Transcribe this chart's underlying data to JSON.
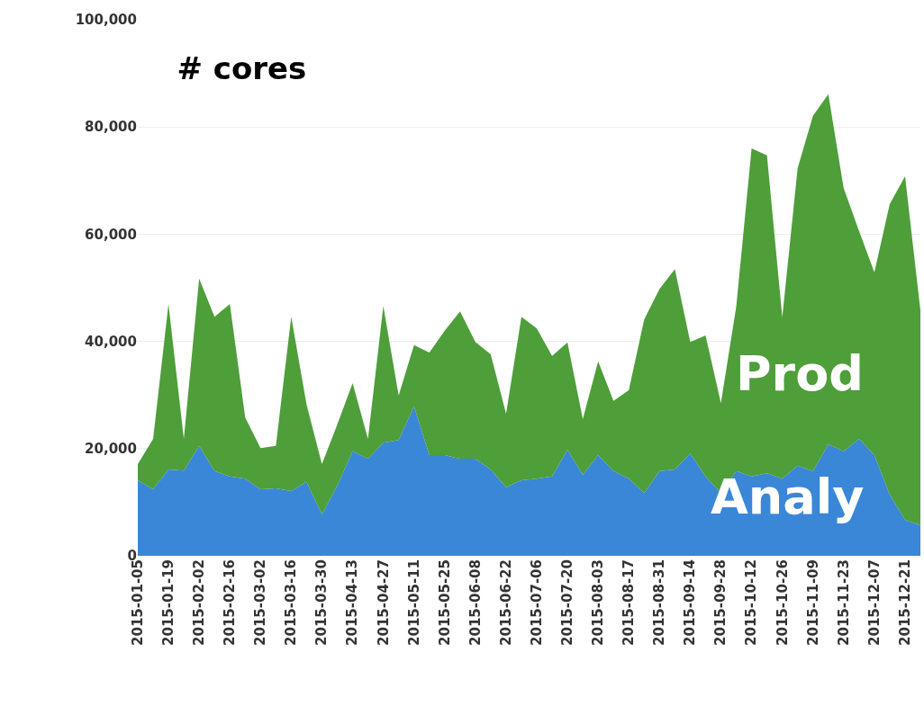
{
  "chart_data": {
    "type": "area",
    "title": "# cores",
    "stacked": true,
    "legend": false,
    "grid": "y",
    "x": [
      "2015-01-05",
      "2015-01-12",
      "2015-01-19",
      "2015-01-26",
      "2015-02-02",
      "2015-02-09",
      "2015-02-16",
      "2015-02-23",
      "2015-03-02",
      "2015-03-09",
      "2015-03-16",
      "2015-03-23",
      "2015-03-30",
      "2015-04-06",
      "2015-04-13",
      "2015-04-20",
      "2015-04-27",
      "2015-05-04",
      "2015-05-11",
      "2015-05-18",
      "2015-05-25",
      "2015-06-01",
      "2015-06-08",
      "2015-06-15",
      "2015-06-22",
      "2015-06-29",
      "2015-07-06",
      "2015-07-13",
      "2015-07-20",
      "2015-07-27",
      "2015-08-03",
      "2015-08-10",
      "2015-08-17",
      "2015-08-24",
      "2015-08-31",
      "2015-09-07",
      "2015-09-14",
      "2015-09-21",
      "2015-09-28",
      "2015-10-05",
      "2015-10-12",
      "2015-10-19",
      "2015-10-26",
      "2015-11-02",
      "2015-11-09",
      "2015-11-16",
      "2015-11-23",
      "2015-11-30",
      "2015-12-07",
      "2015-12-14",
      "2015-12-21",
      "2015-12-28"
    ],
    "series": [
      {
        "name": "Analy",
        "color": "#3a87d8",
        "values": [
          14100,
          12400,
          16100,
          15900,
          20500,
          15800,
          14800,
          14400,
          12400,
          12600,
          12100,
          13800,
          7700,
          13100,
          19500,
          18100,
          21100,
          21600,
          27900,
          18800,
          18800,
          18100,
          18100,
          16100,
          12800,
          14100,
          14400,
          14800,
          19800,
          15100,
          18800,
          15800,
          14400,
          11700,
          15800,
          16100,
          19100,
          14800,
          11700,
          15800,
          14800,
          15400,
          14400,
          16800,
          15800,
          20800,
          19500,
          21800,
          18800,
          11400,
          6700,
          5700
        ]
      },
      {
        "name": "Prod",
        "color": "#4e9e3a",
        "values": [
          3000,
          9400,
          30900,
          5900,
          31200,
          28800,
          32200,
          11400,
          7700,
          7900,
          32500,
          14400,
          9400,
          11400,
          12700,
          3700,
          25500,
          8300,
          11400,
          19100,
          23200,
          27500,
          21800,
          21500,
          13700,
          30500,
          28000,
          22500,
          20000,
          10400,
          17500,
          13100,
          16500,
          32400,
          34000,
          37400,
          20800,
          26300,
          16800,
          30700,
          61200,
          59300,
          30100,
          55500,
          66300,
          65300,
          49100,
          38800,
          34100,
          54200,
          64100,
          40100
        ]
      }
    ],
    "xlim": [
      "2015-01-05",
      "2015-12-28"
    ],
    "xticks": [
      "2015-01-05",
      "2015-01-19",
      "2015-02-02",
      "2015-02-16",
      "2015-03-02",
      "2015-03-16",
      "2015-03-30",
      "2015-04-13",
      "2015-04-27",
      "2015-05-11",
      "2015-05-25",
      "2015-06-08",
      "2015-06-22",
      "2015-07-06",
      "2015-07-20",
      "2015-08-03",
      "2015-08-17",
      "2015-08-31",
      "2015-09-14",
      "2015-09-28",
      "2015-10-12",
      "2015-10-26",
      "2015-11-09",
      "2015-11-23",
      "2015-12-07",
      "2015-12-21"
    ],
    "ylim": [
      0,
      100000
    ],
    "yticks": [
      {
        "value": 0,
        "label": "0"
      },
      {
        "value": 20000,
        "label": "20,000"
      },
      {
        "value": 40000,
        "label": "40,000"
      },
      {
        "value": 60000,
        "label": "60,000"
      },
      {
        "value": 80000,
        "label": "80,000"
      },
      {
        "value": 100000,
        "label": "100,000"
      }
    ]
  }
}
